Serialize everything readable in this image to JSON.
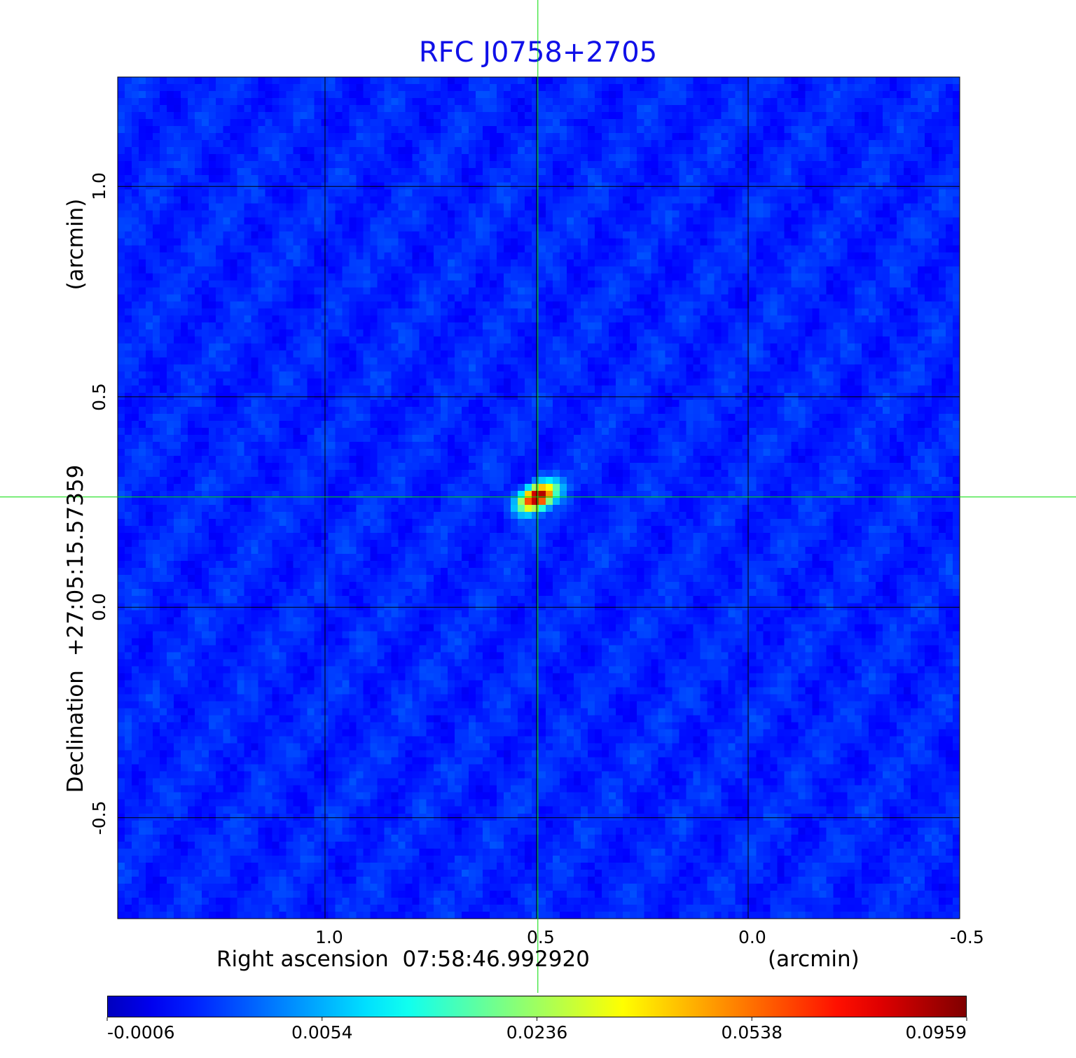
{
  "chart_data": {
    "type": "heatmap",
    "title": "RFC J0758+2705",
    "xlabel": "Right ascension  07:58:46.992920",
    "xunit": "(arcmin)",
    "ylabel": "Declination  +27:05:15.57359",
    "yunit": "(arcmin)",
    "xlim": [
      1.49,
      -0.5
    ],
    "ylim": [
      -0.74,
      1.26
    ],
    "x_ticks": [
      "1.0",
      "0.5",
      "0.0",
      "-0.5"
    ],
    "x_tick_values": [
      1.0,
      0.5,
      0.0,
      -0.5
    ],
    "y_ticks": [
      "1.0",
      "0.5",
      "0.0",
      "-0.5"
    ],
    "y_tick_values": [
      1.0,
      0.5,
      0.0,
      -0.5
    ],
    "grid": true,
    "colormap": "jet",
    "colorbar": {
      "position": "bottom",
      "tick_labels": [
        "-0.0006",
        "0.0054",
        "0.0236",
        "0.0538",
        "0.0959"
      ],
      "range": [
        -0.0006,
        0.0959
      ]
    },
    "source": {
      "x": 0.498,
      "y": 0.262,
      "peak": 0.0959
    },
    "crosshair": {
      "x": 0.497,
      "y": 0.262,
      "color": "#00dd00"
    }
  }
}
